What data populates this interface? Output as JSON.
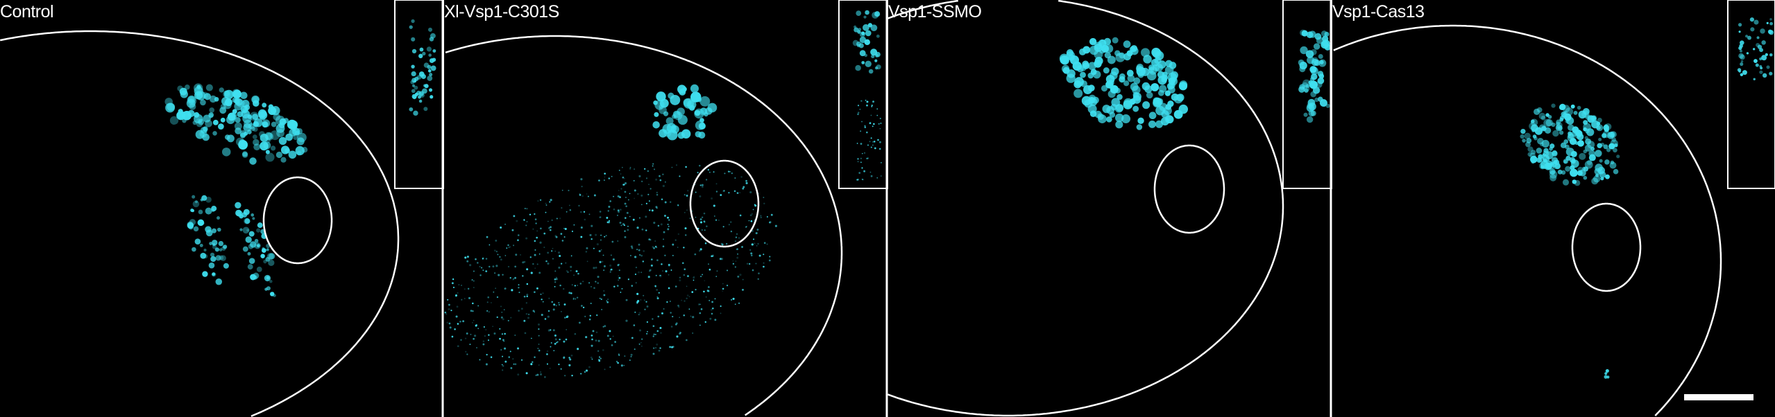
{
  "panels": [
    {
      "label": "Control"
    },
    {
      "label": "Xl-Vsp1-C301S"
    },
    {
      "label": "Vsp1-SSMO"
    },
    {
      "label": "Vsp1-Cas13"
    }
  ],
  "colors": {
    "signal": "#3fe0f0",
    "outline": "#ffffff",
    "background": "#000000"
  },
  "scale_bar": true
}
